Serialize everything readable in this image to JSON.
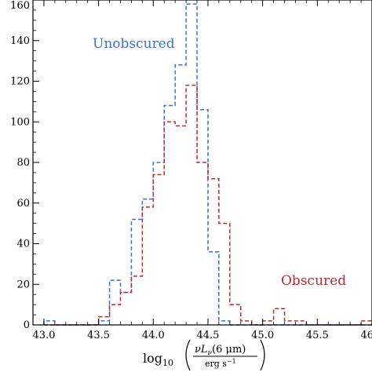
{
  "chart_data": {
    "type": "step-histogram",
    "xlim": [
      42.9,
      46.0
    ],
    "ylim": [
      0,
      160
    ],
    "x_ticks": [
      43.0,
      43.5,
      44.0,
      44.5,
      45.0,
      45.5,
      46.0
    ],
    "x_tick_labels": [
      "43.0",
      "43.5",
      "44.0",
      "44.5",
      "45.0",
      "45.5",
      "46.0"
    ],
    "y_ticks": [
      0,
      20,
      40,
      60,
      80,
      100,
      120,
      140,
      160
    ],
    "y_tick_labels": [
      "0",
      "20",
      "40",
      "60",
      "80",
      "100",
      "120",
      "140",
      "160"
    ],
    "xlabel": {
      "prefix": "log",
      "subscript": "10",
      "numerator": "νL",
      "numerator_sub": "ν",
      "numerator_rest": "(6 μm)",
      "denominator": "erg s",
      "denominator_sup": "−1"
    },
    "ylabel": "",
    "grid": false,
    "bin_edges": [
      43.0,
      43.1,
      43.2,
      43.3,
      43.4,
      43.5,
      43.6,
      43.7,
      43.8,
      43.9,
      44.0,
      44.1,
      44.2,
      44.3,
      44.4,
      44.5,
      44.6,
      44.7,
      44.8,
      44.9,
      45.0,
      45.1,
      45.2,
      45.3,
      45.4,
      45.5,
      45.6,
      45.7,
      45.8,
      45.9,
      46.0
    ],
    "series": [
      {
        "name": "Unobscured",
        "color": "#3a6fd8",
        "values": [
          2,
          0,
          0,
          0,
          0,
          2,
          22,
          16,
          52,
          62,
          80,
          108,
          128,
          158,
          106,
          36,
          2,
          0,
          0,
          0,
          0,
          0,
          0,
          0,
          0,
          0,
          0,
          0,
          0,
          0
        ]
      },
      {
        "name": "Obscured",
        "color": "#c0282f",
        "values": [
          0,
          0,
          0,
          0,
          0,
          4,
          10,
          16,
          24,
          58,
          74,
          100,
          98,
          118,
          80,
          72,
          50,
          10,
          2,
          0,
          2,
          8,
          2,
          2,
          0,
          0,
          0,
          0,
          0,
          2
        ]
      }
    ],
    "legend": [
      {
        "label": "Unobscured",
        "color": "#3a6fd8",
        "placement": "top-left"
      },
      {
        "label": "Obscured",
        "color": "#c0282f",
        "placement": "right"
      }
    ]
  }
}
